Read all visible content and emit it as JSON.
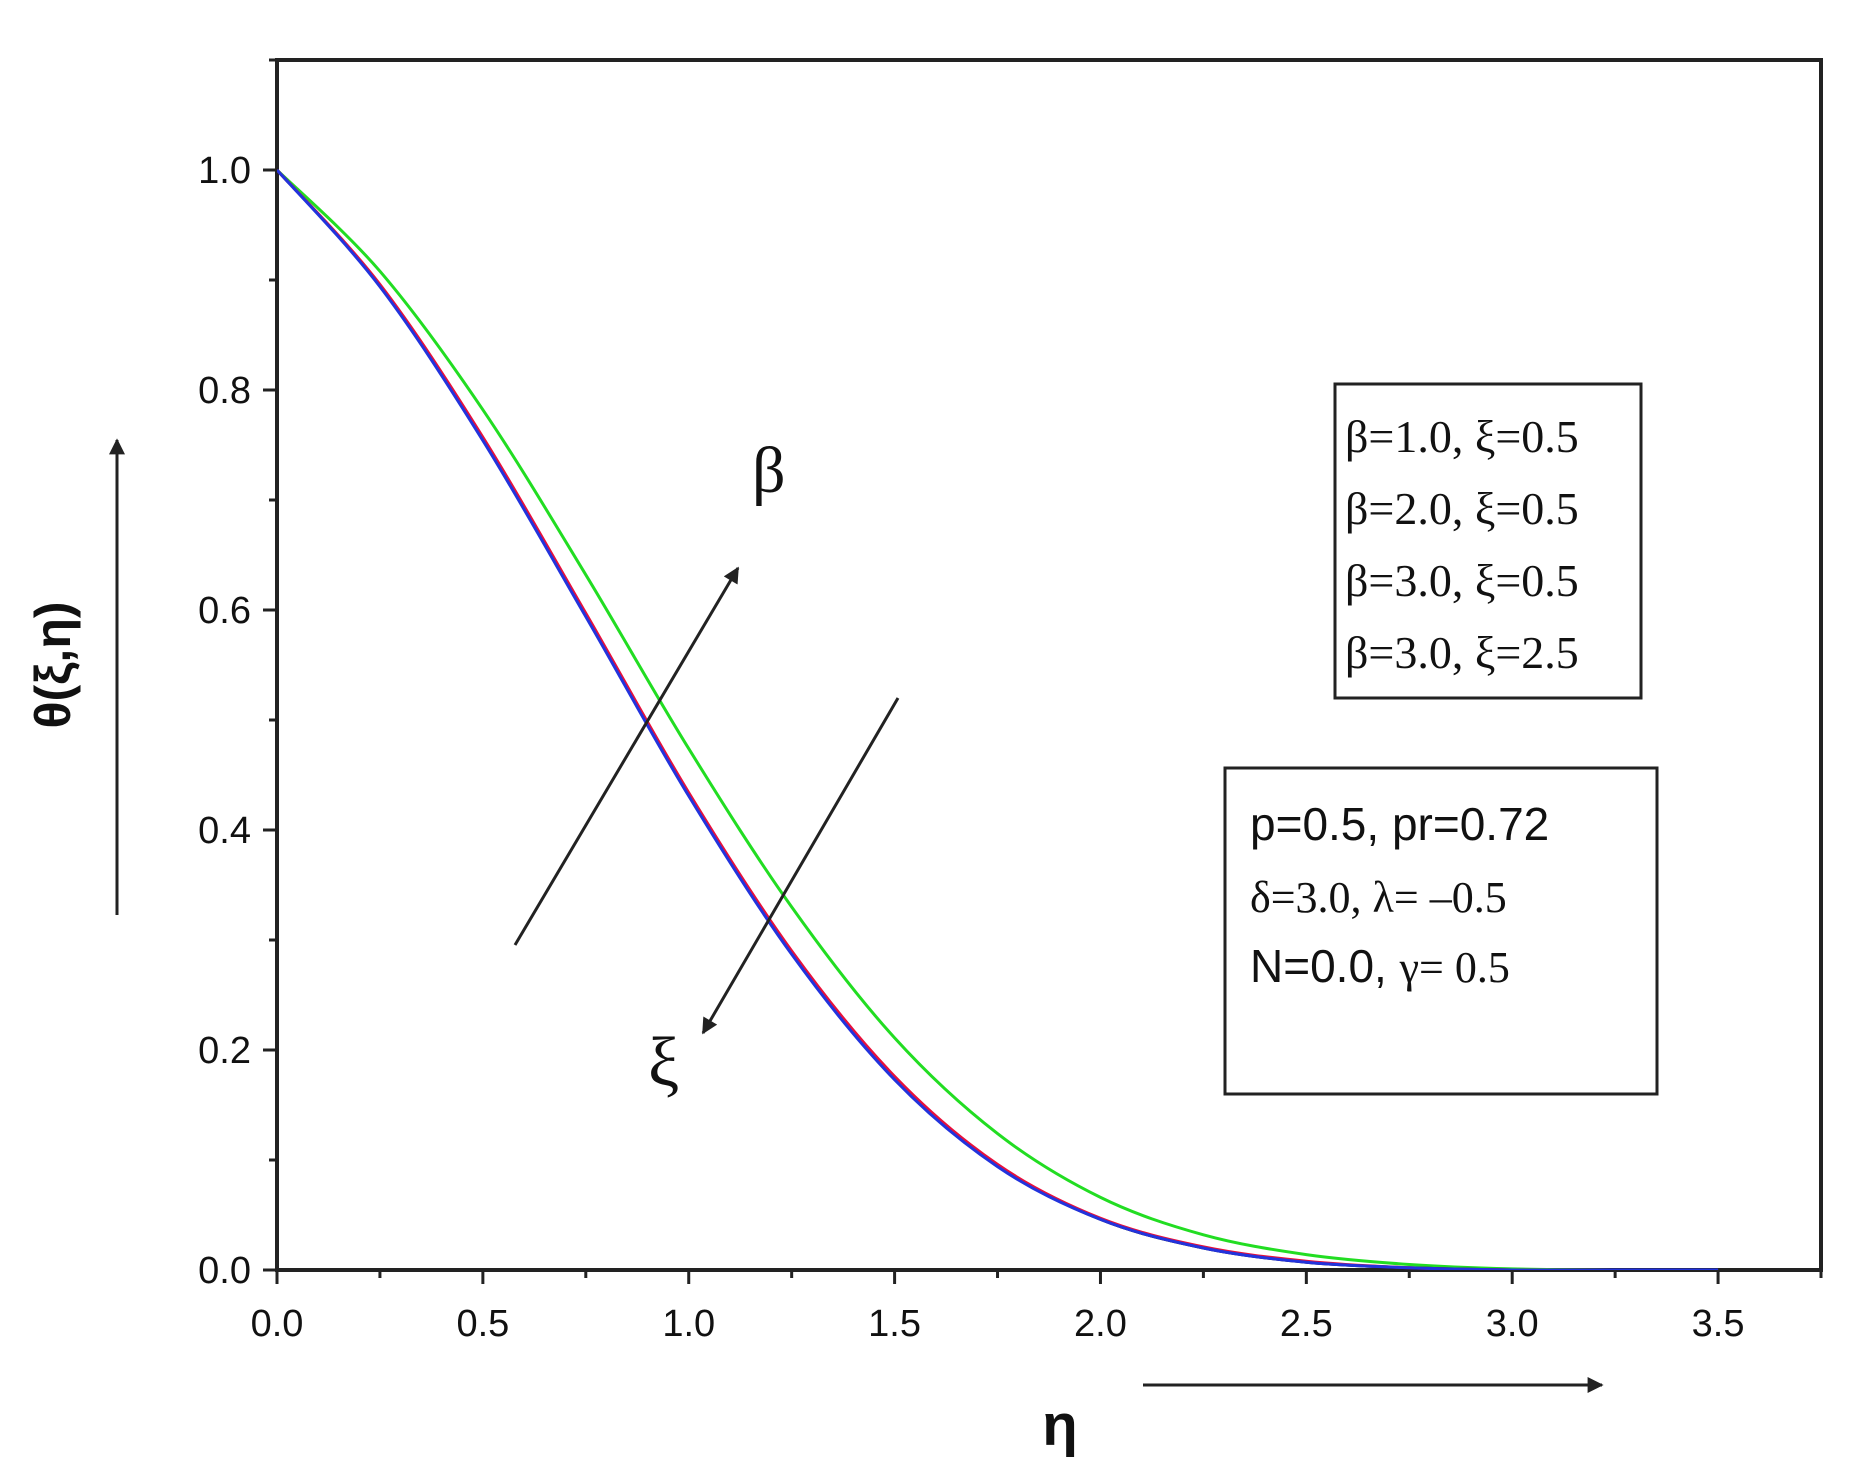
{
  "chart_data": {
    "type": "line",
    "xlabel": "η",
    "ylabel": "θ(ξ,η)",
    "xlim": [
      0.0,
      3.75
    ],
    "ylim": [
      0.0,
      1.1
    ],
    "xticks": [
      "0.0",
      "0.5",
      "1.0",
      "1.5",
      "2.0",
      "2.5",
      "3.0",
      "3.5"
    ],
    "yticks": [
      "0.0",
      "0.2",
      "0.4",
      "0.6",
      "0.8",
      "1.0"
    ],
    "grid": false,
    "legend": {
      "placement": "top-right",
      "entries": [
        "β=1.0, ξ=0.5",
        "β=2.0, ξ=0.5",
        "β=3.0, ξ=0.5",
        "β=3.0, ξ=2.5"
      ]
    },
    "parameters": {
      "line1": "p=0.5, pr=0.72",
      "line2": "δ=3.0, λ= –0.5",
      "line3_a": "N=0.0, ",
      "line3_b": "γ= 0.5"
    },
    "annotations": {
      "beta_label": "β",
      "xi_label": "ξ"
    },
    "x": [
      0.0,
      0.25,
      0.5,
      0.75,
      1.0,
      1.25,
      1.5,
      1.75,
      2.0,
      2.25,
      2.5,
      2.75,
      3.0,
      3.25,
      3.5
    ],
    "series": [
      {
        "color": "#000000",
        "values": [
          1.0,
          0.895,
          0.755,
          0.595,
          0.432,
          0.288,
          0.174,
          0.095,
          0.046,
          0.02,
          0.007,
          0.002,
          0.0,
          0.0,
          0.0
        ]
      },
      {
        "color": "#e8103a",
        "values": [
          1.0,
          0.896,
          0.757,
          0.597,
          0.434,
          0.29,
          0.176,
          0.096,
          0.047,
          0.021,
          0.008,
          0.002,
          0.0,
          0.0,
          0.0
        ]
      },
      {
        "color": "#2233dd",
        "values": [
          1.0,
          0.894,
          0.754,
          0.594,
          0.431,
          0.287,
          0.173,
          0.094,
          0.046,
          0.02,
          0.007,
          0.002,
          0.0,
          0.0,
          0.0
        ]
      },
      {
        "color": "#22dd22",
        "values": [
          1.0,
          0.908,
          0.782,
          0.632,
          0.474,
          0.33,
          0.211,
          0.124,
          0.066,
          0.032,
          0.014,
          0.005,
          0.001,
          0.0,
          0.0
        ]
      }
    ]
  }
}
